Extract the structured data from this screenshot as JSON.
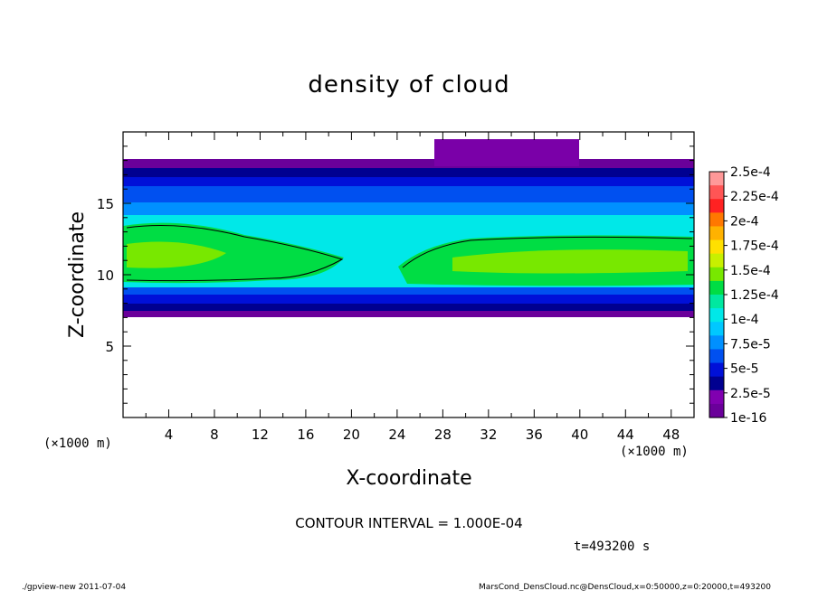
{
  "chart_data": {
    "type": "heatmap",
    "title": "density of cloud",
    "xlabel": "X-coordinate",
    "ylabel": "Z-coordinate",
    "x_unit_left": "(×1000 m)",
    "x_unit_right": "(×1000 m)",
    "xlim": [
      0,
      50
    ],
    "ylim": [
      0,
      20
    ],
    "x_ticks": [
      4,
      8,
      12,
      16,
      20,
      24,
      28,
      32,
      36,
      40,
      44,
      48
    ],
    "y_ticks": [
      5,
      10,
      15
    ],
    "colorbar_labels": [
      "2.5e-4",
      "2.25e-4",
      "2e-4",
      "1.75e-4",
      "1.5e-4",
      "1.25e-4",
      "1e-4",
      "7.5e-5",
      "5e-5",
      "2.5e-5",
      "1e-16"
    ],
    "colorbar_colors": [
      "#ff9898",
      "#ff5555",
      "#ff2222",
      "#ff7800",
      "#ffb200",
      "#ffe000",
      "#c8f000",
      "#78e800",
      "#00dd44",
      "#00e8a0",
      "#00e8e8",
      "#00c8ff",
      "#0090ff",
      "#0050f0",
      "#0010d8",
      "#000090",
      "#8000b0",
      "#6a009a"
    ],
    "contour_interval_text": "CONTOUR INTERVAL = 1.000E-04",
    "time_text": "t=493200 s",
    "cloud_bottom_km": 7.5,
    "cloud_top_km": 18,
    "dense_band_z_km": [
      9.5,
      13.5
    ],
    "dense_gap_x_km": [
      17,
      24
    ]
  },
  "footer": {
    "left": "./gpview-new  2011-07-04",
    "right": "MarsCond_DensCloud.nc@DensCloud,x=0:50000,z=0:20000,t=493200"
  }
}
